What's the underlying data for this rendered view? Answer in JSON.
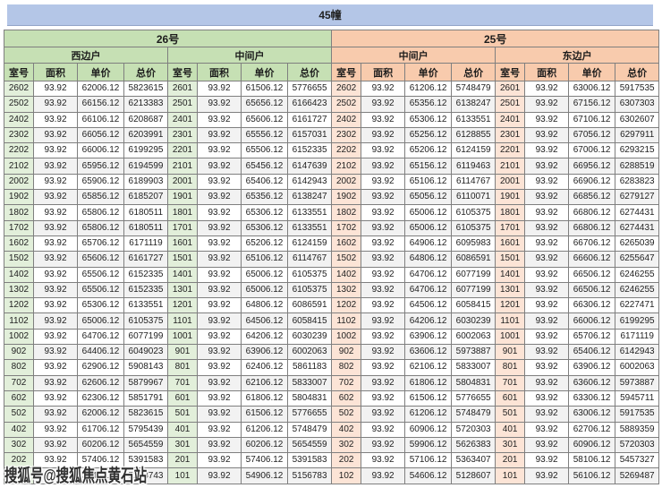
{
  "page": {
    "title": "45幢"
  },
  "watermark": {
    "text": "搜狐号@搜狐焦点黄石站"
  },
  "colors": {
    "lavender": "#b4c6e7",
    "green": "#c6e0b4",
    "green_light": "#e2efda",
    "orange": "#f8cbad",
    "orange_light": "#fce4d6",
    "stripe": "#f2f2f2"
  },
  "header": {
    "buildings": [
      {
        "label": "26号"
      },
      {
        "label": "25号"
      }
    ],
    "units": [
      "西边户",
      "中间户",
      "中间户",
      "东边户"
    ],
    "columns": [
      "室号",
      "面积",
      "单价",
      "总价"
    ]
  },
  "rows": [
    [
      "2602",
      "93.92",
      "62006.12",
      "5823615",
      "2601",
      "93.92",
      "61506.12",
      "5776655",
      "2602",
      "93.92",
      "61206.12",
      "5748479",
      "2601",
      "93.92",
      "63006.12",
      "5917535"
    ],
    [
      "2502",
      "93.92",
      "66156.12",
      "6213383",
      "2501",
      "93.92",
      "65656.12",
      "6166423",
      "2502",
      "93.92",
      "65356.12",
      "6138247",
      "2501",
      "93.92",
      "67156.12",
      "6307303"
    ],
    [
      "2402",
      "93.92",
      "66106.12",
      "6208687",
      "2401",
      "93.92",
      "65606.12",
      "6161727",
      "2402",
      "93.92",
      "65306.12",
      "6133551",
      "2401",
      "93.92",
      "67106.12",
      "6302607"
    ],
    [
      "2302",
      "93.92",
      "66056.12",
      "6203991",
      "2301",
      "93.92",
      "65556.12",
      "6157031",
      "2302",
      "93.92",
      "65256.12",
      "6128855",
      "2301",
      "93.92",
      "67056.12",
      "6297911"
    ],
    [
      "2202",
      "93.92",
      "66006.12",
      "6199295",
      "2201",
      "93.92",
      "65506.12",
      "6152335",
      "2202",
      "93.92",
      "65206.12",
      "6124159",
      "2201",
      "93.92",
      "67006.12",
      "6293215"
    ],
    [
      "2102",
      "93.92",
      "65956.12",
      "6194599",
      "2101",
      "93.92",
      "65456.12",
      "6147639",
      "2102",
      "93.92",
      "65156.12",
      "6119463",
      "2101",
      "93.92",
      "66956.12",
      "6288519"
    ],
    [
      "2002",
      "93.92",
      "65906.12",
      "6189903",
      "2001",
      "93.92",
      "65406.12",
      "6142943",
      "2002",
      "93.92",
      "65106.12",
      "6114767",
      "2001",
      "93.92",
      "66906.12",
      "6283823"
    ],
    [
      "1902",
      "93.92",
      "65856.12",
      "6185207",
      "1901",
      "93.92",
      "65356.12",
      "6138247",
      "1902",
      "93.92",
      "65056.12",
      "6110071",
      "1901",
      "93.92",
      "66856.12",
      "6279127"
    ],
    [
      "1802",
      "93.92",
      "65806.12",
      "6180511",
      "1801",
      "93.92",
      "65306.12",
      "6133551",
      "1802",
      "93.92",
      "65006.12",
      "6105375",
      "1801",
      "93.92",
      "66806.12",
      "6274431"
    ],
    [
      "1702",
      "93.92",
      "65806.12",
      "6180511",
      "1701",
      "93.92",
      "65306.12",
      "6133551",
      "1702",
      "93.92",
      "65006.12",
      "6105375",
      "1701",
      "93.92",
      "66806.12",
      "6274431"
    ],
    [
      "1602",
      "93.92",
      "65706.12",
      "6171119",
      "1601",
      "93.92",
      "65206.12",
      "6124159",
      "1602",
      "93.92",
      "64906.12",
      "6095983",
      "1601",
      "93.92",
      "66706.12",
      "6265039"
    ],
    [
      "1502",
      "93.92",
      "65606.12",
      "6161727",
      "1501",
      "93.92",
      "65106.12",
      "6114767",
      "1502",
      "93.92",
      "64806.12",
      "6086591",
      "1501",
      "93.92",
      "66606.12",
      "6255647"
    ],
    [
      "1402",
      "93.92",
      "65506.12",
      "6152335",
      "1401",
      "93.92",
      "65006.12",
      "6105375",
      "1402",
      "93.92",
      "64706.12",
      "6077199",
      "1401",
      "93.92",
      "66506.12",
      "6246255"
    ],
    [
      "1302",
      "93.92",
      "65506.12",
      "6152335",
      "1301",
      "93.92",
      "65006.12",
      "6105375",
      "1302",
      "93.92",
      "64706.12",
      "6077199",
      "1301",
      "93.92",
      "66506.12",
      "6246255"
    ],
    [
      "1202",
      "93.92",
      "65306.12",
      "6133551",
      "1201",
      "93.92",
      "64806.12",
      "6086591",
      "1202",
      "93.92",
      "64506.12",
      "6058415",
      "1201",
      "93.92",
      "66306.12",
      "6227471"
    ],
    [
      "1102",
      "93.92",
      "65006.12",
      "6105375",
      "1101",
      "93.92",
      "64506.12",
      "6058415",
      "1102",
      "93.92",
      "64206.12",
      "6030239",
      "1101",
      "93.92",
      "66006.12",
      "6199295"
    ],
    [
      "1002",
      "93.92",
      "64706.12",
      "6077199",
      "1001",
      "93.92",
      "64206.12",
      "6030239",
      "1002",
      "93.92",
      "63906.12",
      "6002063",
      "1001",
      "93.92",
      "65706.12",
      "6171119"
    ],
    [
      "902",
      "93.92",
      "64406.12",
      "6049023",
      "901",
      "93.92",
      "63906.12",
      "6002063",
      "902",
      "93.92",
      "63606.12",
      "5973887",
      "901",
      "93.92",
      "65406.12",
      "6142943"
    ],
    [
      "802",
      "93.92",
      "62906.12",
      "5908143",
      "801",
      "93.92",
      "62406.12",
      "5861183",
      "802",
      "93.92",
      "62106.12",
      "5833007",
      "801",
      "93.92",
      "63906.12",
      "6002063"
    ],
    [
      "702",
      "93.92",
      "62606.12",
      "5879967",
      "701",
      "93.92",
      "62106.12",
      "5833007",
      "702",
      "93.92",
      "61806.12",
      "5804831",
      "701",
      "93.92",
      "63606.12",
      "5973887"
    ],
    [
      "602",
      "93.92",
      "62306.12",
      "5851791",
      "601",
      "93.92",
      "61806.12",
      "5804831",
      "602",
      "93.92",
      "61506.12",
      "5776655",
      "601",
      "93.92",
      "63306.12",
      "5945711"
    ],
    [
      "502",
      "93.92",
      "62006.12",
      "5823615",
      "501",
      "93.92",
      "61506.12",
      "5776655",
      "502",
      "93.92",
      "61206.12",
      "5748479",
      "501",
      "93.92",
      "63006.12",
      "5917535"
    ],
    [
      "402",
      "93.92",
      "61706.12",
      "5795439",
      "401",
      "93.92",
      "61206.12",
      "5748479",
      "402",
      "93.92",
      "60906.12",
      "5720303",
      "401",
      "93.92",
      "62706.12",
      "5889359"
    ],
    [
      "302",
      "93.92",
      "60206.12",
      "5654559",
      "301",
      "93.92",
      "60206.12",
      "5654559",
      "302",
      "93.92",
      "59906.12",
      "5626383",
      "301",
      "93.92",
      "60906.12",
      "5720303"
    ],
    [
      "202",
      "93.92",
      "57406.12",
      "5391583",
      "201",
      "93.92",
      "57406.12",
      "5391583",
      "202",
      "93.92",
      "57106.12",
      "5363407",
      "201",
      "93.92",
      "58106.12",
      "5457327"
    ],
    [
      "102",
      "93.92",
      "55406.12",
      "5203743",
      "101",
      "93.92",
      "54906.12",
      "5156783",
      "102",
      "93.92",
      "54606.12",
      "5128607",
      "101",
      "93.92",
      "56106.12",
      "5269487"
    ]
  ]
}
